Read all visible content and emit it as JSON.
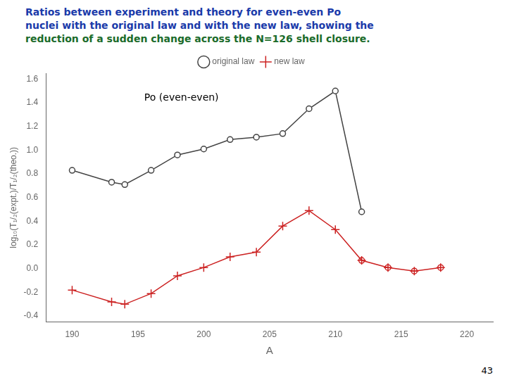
{
  "chart_data": {
    "type": "line",
    "title": [
      "Ratios between experiment and theory for even-even Po",
      "nuclei with the original law and with the new law, showing the",
      "reduction of a sudden change across the N=126 shell closure."
    ],
    "title_colors": [
      "#1a3aaa",
      "#1a3aaa",
      "#1a6b2a"
    ],
    "page_number": "43",
    "annotations": [
      {
        "text": "Po (even-even)"
      }
    ],
    "x_label": "A",
    "y_label": "log₁₀(T₁/₂(expt.)/T₁/₂(theo.))",
    "xlim": [
      188,
      222
    ],
    "ylim": [
      -0.45,
      1.65
    ],
    "xticks": [
      190,
      195,
      200,
      205,
      210,
      215,
      220
    ],
    "yticks": [
      -0.4,
      -0.2,
      {
        "value": 0,
        "label": "0.0"
      },
      0.2,
      0.4,
      0.6,
      0.8,
      {
        "value": 1,
        "label": "1.0"
      },
      1.2,
      1.4,
      1.6
    ],
    "grid": false,
    "legend": "top",
    "series": [
      {
        "name": "original law",
        "color": "#444444",
        "marker": "circle",
        "line_style": "solid",
        "x": [
          190,
          193,
          194,
          196,
          198,
          200,
          202,
          204,
          206,
          208,
          210,
          212
        ],
        "values": [
          0.83,
          0.73,
          0.71,
          0.83,
          0.96,
          1.01,
          1.09,
          1.11,
          1.14,
          1.35,
          1.5,
          0.48
        ]
      },
      {
        "name": "new law",
        "color": "#cc2222",
        "marker": "plus",
        "line_style": "solid",
        "x": [
          190,
          193,
          194,
          196,
          198,
          200,
          202,
          204,
          206,
          208,
          210,
          212,
          214,
          216,
          218
        ],
        "values": [
          -0.18,
          -0.28,
          -0.3,
          -0.21,
          -0.06,
          0.01,
          0.1,
          0.14,
          0.36,
          0.49,
          0.33,
          0.07,
          0.01,
          -0.02,
          0.01
        ]
      },
      {
        "color": "#cc2222",
        "marker": "circle",
        "line_style": "none",
        "x": [
          212,
          214,
          216,
          218
        ],
        "values": [
          0.07,
          0.01,
          -0.02,
          0.01
        ]
      }
    ]
  }
}
